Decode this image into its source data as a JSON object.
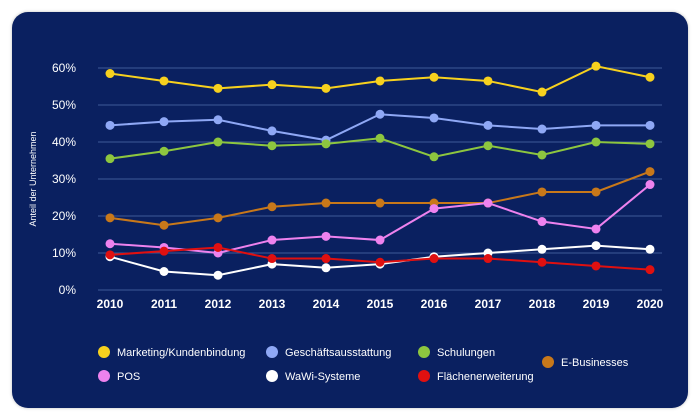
{
  "chart_data": {
    "type": "line",
    "title": "",
    "xlabel": "",
    "ylabel": "Anteil der Unternehmen",
    "ylim": [
      0,
      65
    ],
    "yticks": [
      "0%",
      "10%",
      "20%",
      "30%",
      "40%",
      "50%",
      "60%"
    ],
    "grid": true,
    "legend_position": "bottom",
    "x": [
      "2010",
      "2011",
      "2012",
      "2013",
      "2014",
      "2015",
      "2016",
      "2017",
      "2018",
      "2019",
      "2020"
    ],
    "series": [
      {
        "name": "Marketing/Kundenbindung",
        "color": "#f7d11e",
        "values": [
          58.5,
          56.5,
          54.5,
          55.5,
          54.5,
          56.5,
          57.5,
          56.5,
          53.5,
          60.5,
          57.5
        ]
      },
      {
        "name": "Geschäftsausstattung",
        "color": "#8fa8f5",
        "values": [
          44.5,
          45.5,
          46,
          43,
          40.5,
          47.5,
          46.5,
          44.5,
          43.5,
          44.5,
          44.5
        ]
      },
      {
        "name": "Schulungen",
        "color": "#8dc63f",
        "values": [
          35.5,
          37.5,
          40,
          39,
          39.5,
          41,
          36,
          39,
          36.5,
          40,
          39.5
        ]
      },
      {
        "name": "E-Businesses",
        "color": "#c8781a",
        "values": [
          19.5,
          17.5,
          19.5,
          22.5,
          23.5,
          23.5,
          23.5,
          23.5,
          26.5,
          26.5,
          32
        ]
      },
      {
        "name": "POS",
        "color": "#ee82ee",
        "values": [
          12.5,
          11.5,
          10,
          13.5,
          14.5,
          13.5,
          22,
          23.5,
          18.5,
          16.5,
          28.5
        ]
      },
      {
        "name": "WaWi-Systeme",
        "color": "#ffffff",
        "values": [
          9,
          5,
          4,
          7,
          6,
          7,
          9,
          10,
          11,
          12,
          11
        ]
      },
      {
        "name": "Flächenerweiterung",
        "color": "#e01010",
        "values": [
          9.5,
          10.5,
          11.5,
          8.5,
          8.5,
          7.5,
          8.5,
          8.5,
          7.5,
          6.5,
          5.5
        ]
      }
    ]
  }
}
